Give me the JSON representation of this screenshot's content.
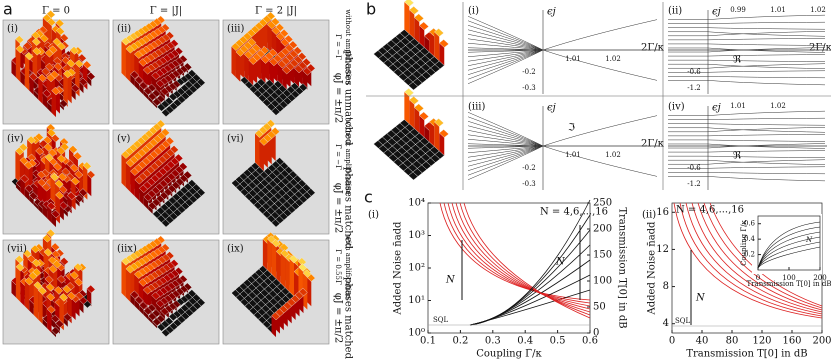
{
  "panel_a": {
    "label": "a",
    "columns": [
      "Γ = 0",
      "Γ = |J|",
      "Γ = 2 |J|"
    ],
    "panels": [
      "(i)",
      "(ii)",
      "(iii)",
      "(iv)",
      "(v)",
      "(vi)",
      "(vii)",
      "(iix)",
      "(ix)"
    ],
    "rows": [
      {
        "coupling": "Γ̄ = −Γ",
        "amplification": "without amplification",
        "phase": "φJ = ±π/2",
        "phases": "phases unmatched"
      },
      {
        "coupling": "Γ̄ = −Γ",
        "amplification": "without amplification",
        "phase": "φJ = ±π/2",
        "phases": "phases matched"
      },
      {
        "coupling": "Γ̄ = 0.55Γ",
        "amplification": "with amplification",
        "phase": "φJ = ±π/2",
        "phases": "phases matched"
      }
    ]
  },
  "panel_b": {
    "label": "b",
    "panels": [
      {
        "label": "(i)",
        "y_label": "ϵj",
        "x_label": "2Γ/κ",
        "ticks": [
          "1.01",
          "1.02",
          "-0.2",
          "-0.3"
        ]
      },
      {
        "label": "(ii)",
        "y_label": "ϵj",
        "x_label": "2Γ/κ",
        "part": "ℜ",
        "ticks": [
          "0.99",
          "1.01",
          "1.02",
          "-0.6",
          "-1.2"
        ]
      },
      {
        "label": "(iii)",
        "y_label": "ϵj",
        "x_label": "2Γ/κ",
        "part": "ℑ",
        "ticks": [
          "1.01",
          "1.02",
          "-0.2",
          "-0.3"
        ]
      },
      {
        "label": "(iv)",
        "y_label": "ϵj",
        "part": "ℜ",
        "ticks": [
          "1.01",
          "1.02",
          "-0.6",
          "-1.2"
        ]
      }
    ]
  },
  "panel_c": {
    "label": "c",
    "charts": [
      {
        "label": "(i)",
        "type": "line",
        "x_label": "Coupling Γ̄/κ",
        "y_label": "Added Noise n̄add",
        "y2_label": "Transmission T[0] in dB",
        "xlim": [
          0.1,
          0.6
        ],
        "xticks": [
          0.1,
          0.2,
          0.3,
          0.4,
          0.5,
          0.6
        ],
        "ylim": [
          1,
          10000
        ],
        "log_y": true,
        "yticks": [
          {
            "value": 1,
            "label": "10⁰"
          },
          {
            "value": 10,
            "label": "10¹"
          },
          {
            "value": 100,
            "label": "10²"
          },
          {
            "value": 1000,
            "label": "10³"
          },
          {
            "value": 10000,
            "label": "10⁴"
          }
        ],
        "y2lim": [
          0,
          250
        ],
        "y2ticks": [
          0,
          50,
          100,
          150,
          200,
          250
        ],
        "annotations": [
          "N = 4,6,...,16",
          "N",
          "N",
          "SQL"
        ]
      },
      {
        "label": "(ii)",
        "type": "line",
        "x_label": "Transmission T[0] in dB",
        "y_label": "Added Noise n̄add",
        "xlim": [
          0,
          200
        ],
        "xticks": [
          0,
          40,
          80,
          120,
          160,
          200
        ],
        "ylim": [
          3,
          17
        ],
        "yticks": [
          4,
          8,
          12,
          16
        ],
        "annotations": [
          "N = 4,6,...,16",
          "N",
          "SQL"
        ],
        "inset": {
          "x_label": "Transmission T[0] in dB",
          "y_label": "Coupling Γ̄/κ",
          "annotation": "N",
          "xlim": [
            0,
            200
          ],
          "xticks": [
            0,
            100,
            200
          ],
          "ylim": [
            0,
            0.7
          ],
          "yticks": [
            0.2,
            0.4,
            0.6
          ]
        }
      }
    ]
  }
}
